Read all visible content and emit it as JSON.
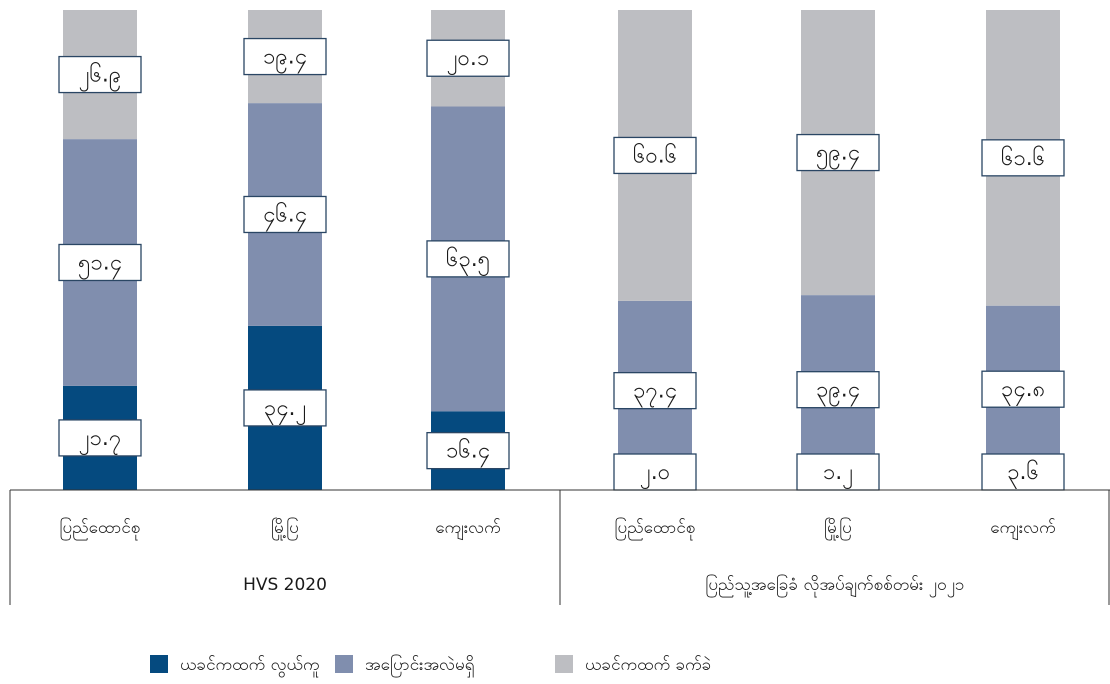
{
  "chart_data": {
    "type": "stacked-bar",
    "groups": [
      {
        "label": "HVS 2020",
        "categories": [
          "ပြည်ထောင်စု",
          "မြို့ပြ",
          "ကျေးလက်"
        ]
      },
      {
        "label": "ပြည်သူ့အခြေခံ လိုအပ်ချက်စစ်တမ်း ၂၀၂၁",
        "categories": [
          "ပြည်ထောင်စု",
          "မြို့ပြ",
          "ကျေးလက်"
        ]
      }
    ],
    "ylim": [
      0,
      100
    ],
    "series": [
      {
        "name": "ယခင်ကထက် လွယ်ကူ",
        "color": "#054a7f",
        "values": [
          21.7,
          34.2,
          16.4,
          2.0,
          1.2,
          3.6
        ],
        "value_labels": [
          "၂၁.၇",
          "၃၄.၂",
          "၁၆.၄",
          "၂.၀",
          "၁.၂",
          "၃.၆"
        ]
      },
      {
        "name": "အပြောင်းအလဲမရှိ",
        "color": "#808eae",
        "values": [
          51.4,
          46.4,
          63.5,
          37.4,
          39.4,
          34.8
        ],
        "value_labels": [
          "၅၁.၄",
          "၄၆.၄",
          "၆၃.၅",
          "၃၇.၄",
          "၃၉.၄",
          "၃၄.၈"
        ]
      },
      {
        "name": "ယခင်ကထက် ခက်ခဲ",
        "color": "#bdbec2",
        "values": [
          26.9,
          19.4,
          20.1,
          60.6,
          59.4,
          61.6
        ],
        "value_labels": [
          "၂၆.၉",
          "၁၉.၄",
          "၂၀.၁",
          "၆၀.၆",
          "၅၉.၄",
          "၆၁.၆"
        ]
      }
    ]
  }
}
